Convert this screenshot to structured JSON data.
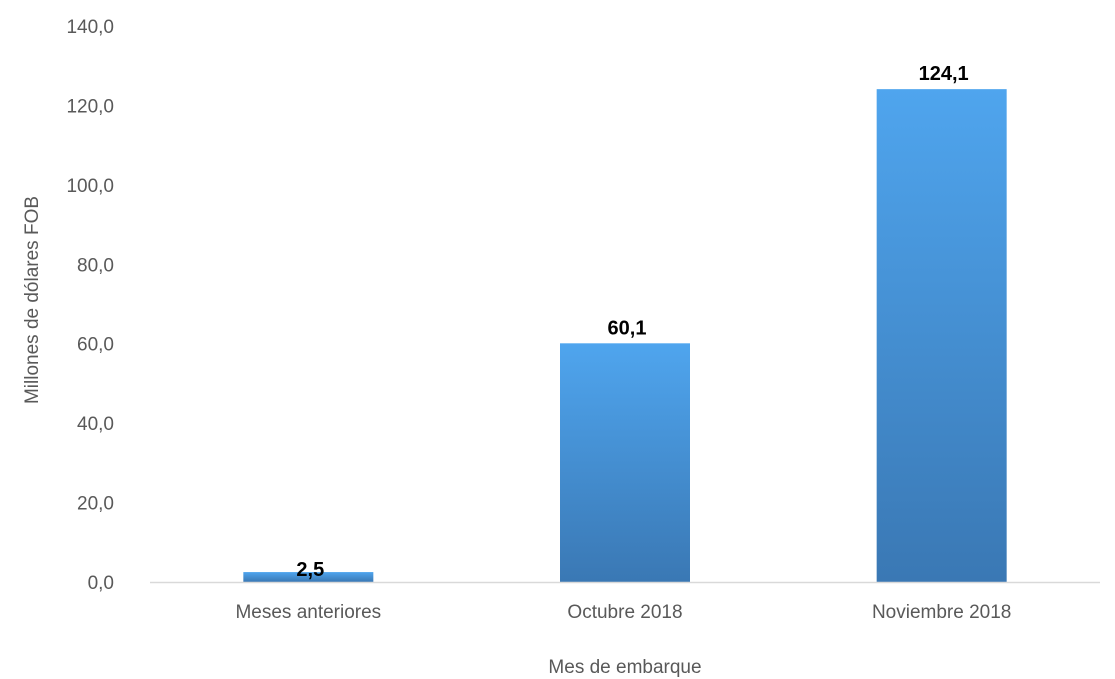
{
  "chart_data": {
    "type": "bar",
    "categories": [
      "Meses anteriores",
      "Octubre 2018",
      "Noviembre 2018"
    ],
    "values": [
      2.5,
      60.1,
      124.1
    ],
    "value_labels": [
      "2,5",
      "60,1",
      "124,1"
    ],
    "title": "",
    "xlabel": "Mes de embarque",
    "ylabel": "Millones de dólares FOB",
    "ylim": [
      0,
      140
    ],
    "yticks": [
      0,
      20,
      40,
      60,
      80,
      100,
      120,
      140
    ],
    "ytick_labels": [
      "0,0",
      "20,0",
      "40,0",
      "60,0",
      "80,0",
      "100,0",
      "120,0",
      "140,0"
    ],
    "grid": false,
    "legend": "none",
    "colors": {
      "bar_top": "#4FA5EE",
      "bar_bottom": "#3A78B4",
      "axis": "#D9D9D9"
    }
  }
}
